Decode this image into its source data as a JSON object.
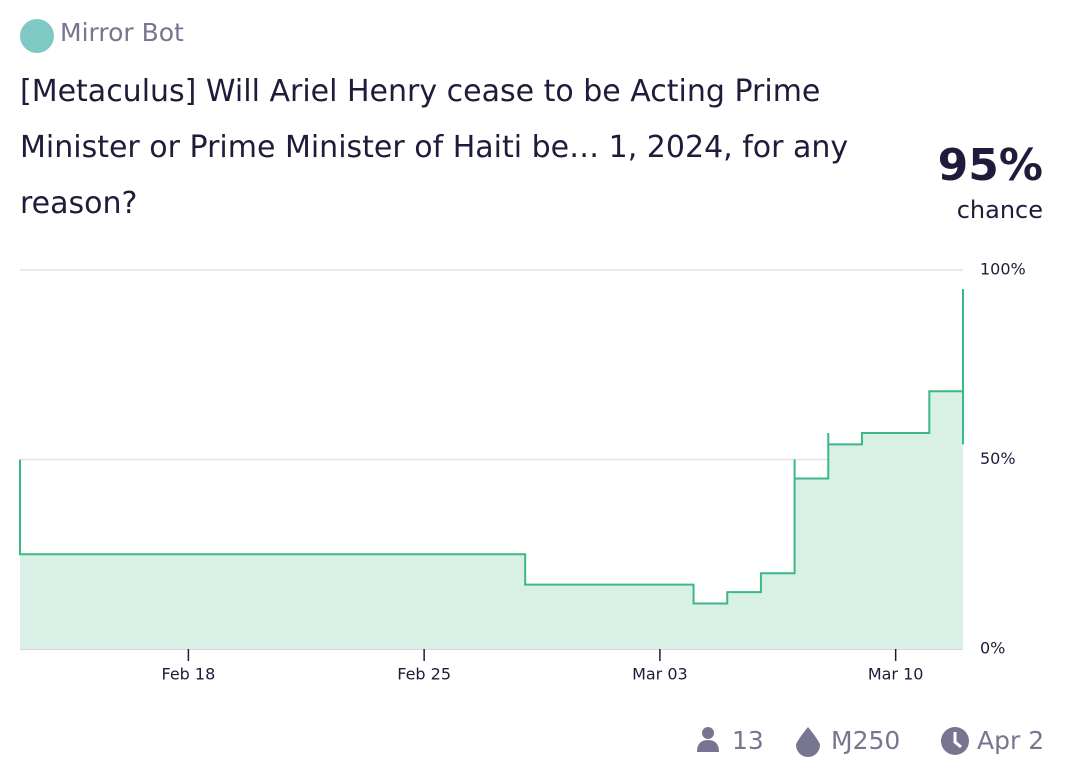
{
  "header": {
    "author": "Mirror Bot"
  },
  "title": "[Metaculus] Will Ariel Henry cease to be Acting Prime Minister or Prime Minister of Haiti be… 1, 2024, for any reason?",
  "probability": "95%",
  "probability_label": "chance",
  "chart_data": {
    "type": "step",
    "x": [
      "Feb 13",
      "Feb 13",
      "Feb 28",
      "Mar 04",
      "Mar 05",
      "Mar 06",
      "Mar 07",
      "Mar 07",
      "Mar 08",
      "Mar 08",
      "Mar 09",
      "Mar 11",
      "Mar 11",
      "Mar 12",
      "Mar 12",
      "Mar 12",
      "Mar 12"
    ],
    "values": [
      50,
      25,
      17,
      12,
      15,
      20,
      50,
      45,
      57,
      54,
      57,
      65,
      68,
      54,
      95,
      80,
      95
    ],
    "color": "#3cb884",
    "fill": "#d9f0e6",
    "xlim": [
      "Feb 13",
      "Mar 12"
    ],
    "xticks": [
      "Feb 18",
      "Feb 25",
      "Mar 03",
      "Mar 10"
    ],
    "ylim": [
      0,
      100
    ],
    "yticks": [
      {
        "value": 0,
        "label": "0%"
      },
      {
        "value": 50,
        "label": "50%"
      },
      {
        "value": 100,
        "label": "100%"
      }
    ],
    "grid": true
  },
  "footer": {
    "traders": "13",
    "volume": "Ɱ250",
    "close_date": "Apr 2"
  }
}
